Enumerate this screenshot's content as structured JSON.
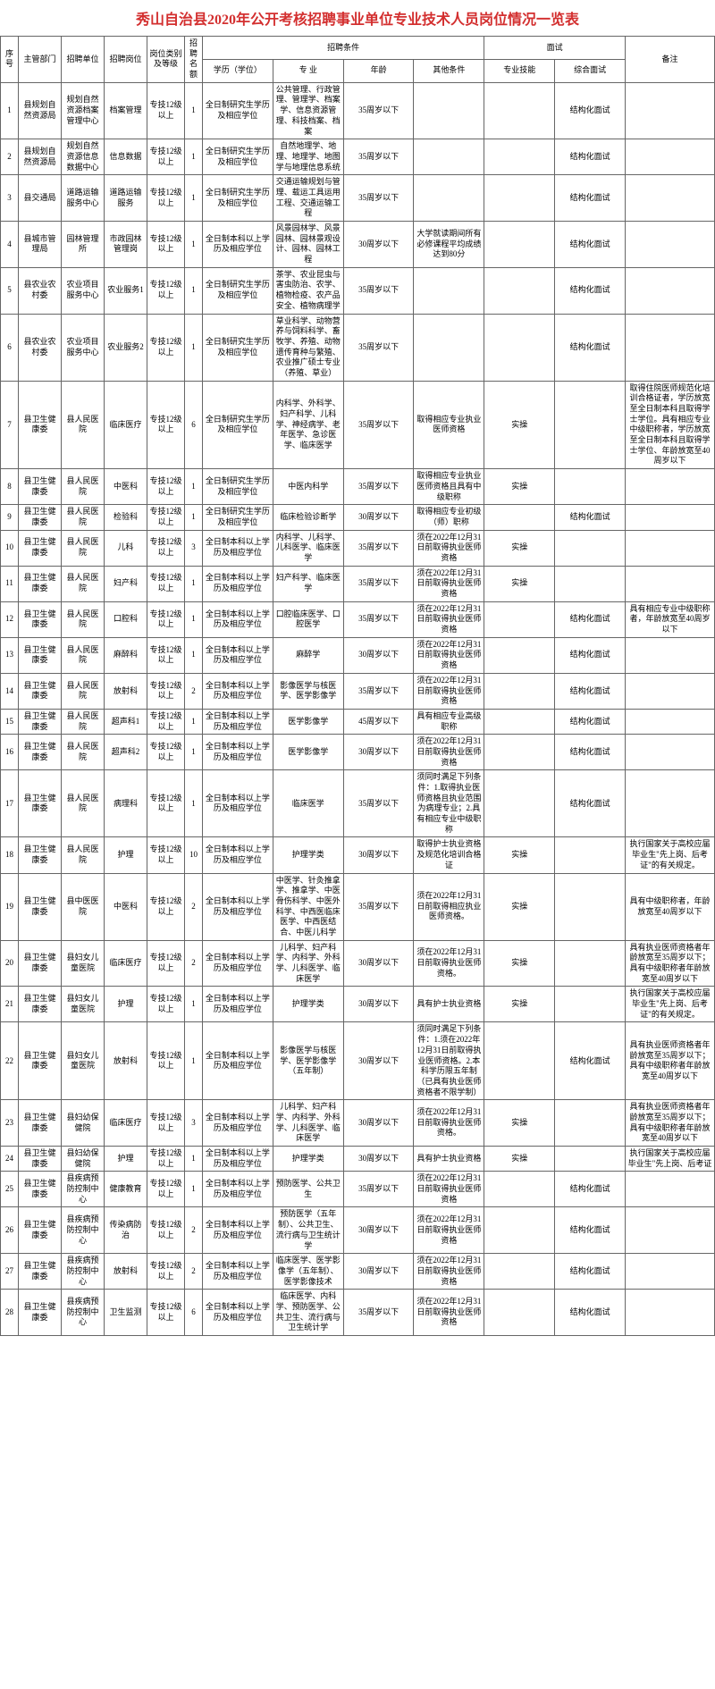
{
  "title": "秀山自治县2020年公开考核招聘事业单位专业技术人员岗位情况一览表",
  "headers": {
    "seq": "序号",
    "dept": "主管部门",
    "unit": "招聘单位",
    "post": "招聘岗位",
    "level": "岗位类别及等级",
    "num": "招聘名额",
    "conditions": "招聘条件",
    "edu": "学历（学位）",
    "major": "专  业",
    "age": "年龄",
    "other": "其他条件",
    "interview": "面试",
    "skill": "专业技能",
    "comp": "综合面试",
    "remark": "备注"
  },
  "rows": [
    {
      "seq": "1",
      "dept": "县规划自然资源局",
      "unit": "规划自然资源档案管理中心",
      "post": "档案管理",
      "level": "专技12级以上",
      "num": "1",
      "edu": "全日制研究生学历及相应学位",
      "major": "公共管理、行政管理、管理学、档案学、信息资源管理、科技档案、档案",
      "age": "35周岁以下",
      "other": "",
      "skill": "",
      "comp": "结构化面试",
      "remark": ""
    },
    {
      "seq": "2",
      "dept": "县规划自然资源局",
      "unit": "规划自然资源信息数据中心",
      "post": "信息数据",
      "level": "专技12级以上",
      "num": "1",
      "edu": "全日制研究生学历及相应学位",
      "major": "自然地理学、地理、地理学、地图学与地理信息系统",
      "age": "35周岁以下",
      "other": "",
      "skill": "",
      "comp": "结构化面试",
      "remark": ""
    },
    {
      "seq": "3",
      "dept": "县交通局",
      "unit": "道路运输服务中心",
      "post": "道路运输服务",
      "level": "专技12级以上",
      "num": "1",
      "edu": "全日制研究生学历及相应学位",
      "major": "交通运输规划与管理、载运工具运用工程、交通运输工程",
      "age": "35周岁以下",
      "other": "",
      "skill": "",
      "comp": "结构化面试",
      "remark": ""
    },
    {
      "seq": "4",
      "dept": "县城市管理局",
      "unit": "园林管理所",
      "post": "市政园林管理岗",
      "level": "专技12级以上",
      "num": "1",
      "edu": "全日制本科以上学历及相应学位",
      "major": "风景园林学、风景园林、园林景观设计、园林、园林工程",
      "age": "30周岁以下",
      "other": "大学就读期间所有必修课程平均成绩达到80分",
      "skill": "",
      "comp": "结构化面试",
      "remark": ""
    },
    {
      "seq": "5",
      "dept": "县农业农村委",
      "unit": "农业项目服务中心",
      "post": "农业服务1",
      "level": "专技12级以上",
      "num": "1",
      "edu": "全日制研究生学历及相应学位",
      "major": "茶学、农业昆虫与害虫防治、农学、植物检疫、农产品安全、植物病理学",
      "age": "35周岁以下",
      "other": "",
      "skill": "",
      "comp": "结构化面试",
      "remark": ""
    },
    {
      "seq": "6",
      "dept": "县农业农村委",
      "unit": "农业项目服务中心",
      "post": "农业服务2",
      "level": "专技12级以上",
      "num": "1",
      "edu": "全日制研究生学历及相应学位",
      "major": "草业科学、动物营养与饲料科学、畜牧学、养殖、动物遗传育种与繁殖、农业推广硕士专业（养殖、草业）",
      "age": "35周岁以下",
      "other": "",
      "skill": "",
      "comp": "结构化面试",
      "remark": ""
    },
    {
      "seq": "7",
      "dept": "县卫生健康委",
      "unit": "县人民医院",
      "post": "临床医疗",
      "level": "专技12级以上",
      "num": "6",
      "edu": "全日制研究生学历及相应学位",
      "major": "内科学、外科学、妇产科学、儿科学、神经病学、老年医学、急诊医学、临床医学",
      "age": "35周岁以下",
      "other": "取得相应专业执业医师资格",
      "skill": "实操",
      "comp": "",
      "remark": "取得住院医师规范化培训合格证者，学历放宽至全日制本科且取得学士学位。具有相应专业中级职称者，学历放宽至全日制本科且取得学士学位、年龄放宽至40周岁以下"
    },
    {
      "seq": "8",
      "dept": "县卫生健康委",
      "unit": "县人民医院",
      "post": "中医科",
      "level": "专技12级以上",
      "num": "1",
      "edu": "全日制研究生学历及相应学位",
      "major": "中医内科学",
      "age": "35周岁以下",
      "other": "取得相应专业执业医师资格且具有中级职称",
      "skill": "实操",
      "comp": "",
      "remark": ""
    },
    {
      "seq": "9",
      "dept": "县卫生健康委",
      "unit": "县人民医院",
      "post": "检验科",
      "level": "专技12级以上",
      "num": "1",
      "edu": "全日制研究生学历及相应学位",
      "major": "临床检验诊断学",
      "age": "30周岁以下",
      "other": "取得相应专业初级（师）职称",
      "skill": "",
      "comp": "结构化面试",
      "remark": ""
    },
    {
      "seq": "10",
      "dept": "县卫生健康委",
      "unit": "县人民医院",
      "post": "儿科",
      "level": "专技12级以上",
      "num": "3",
      "edu": "全日制本科以上学历及相应学位",
      "major": "内科学、儿科学、儿科医学、临床医学",
      "age": "35周岁以下",
      "other": "须在2022年12月31日前取得执业医师资格",
      "skill": "实操",
      "comp": "",
      "remark": ""
    },
    {
      "seq": "11",
      "dept": "县卫生健康委",
      "unit": "县人民医院",
      "post": "妇产科",
      "level": "专技12级以上",
      "num": "1",
      "edu": "全日制本科以上学历及相应学位",
      "major": "妇产科学、临床医学",
      "age": "35周岁以下",
      "other": "须在2022年12月31日前取得执业医师资格",
      "skill": "实操",
      "comp": "",
      "remark": ""
    },
    {
      "seq": "12",
      "dept": "县卫生健康委",
      "unit": "县人民医院",
      "post": "口腔科",
      "level": "专技12级以上",
      "num": "1",
      "edu": "全日制本科以上学历及相应学位",
      "major": "口腔临床医学、口腔医学",
      "age": "35周岁以下",
      "other": "须在2022年12月31日前取得执业医师资格",
      "skill": "",
      "comp": "结构化面试",
      "remark": "具有相应专业中级职称者，年龄放宽至40周岁以下"
    },
    {
      "seq": "13",
      "dept": "县卫生健康委",
      "unit": "县人民医院",
      "post": "麻醉科",
      "level": "专技12级以上",
      "num": "1",
      "edu": "全日制本科以上学历及相应学位",
      "major": "麻醉学",
      "age": "30周岁以下",
      "other": "须在2022年12月31日前取得执业医师资格",
      "skill": "",
      "comp": "结构化面试",
      "remark": ""
    },
    {
      "seq": "14",
      "dept": "县卫生健康委",
      "unit": "县人民医院",
      "post": "放射科",
      "level": "专技12级以上",
      "num": "2",
      "edu": "全日制本科以上学历及相应学位",
      "major": "影像医学与核医学、医学影像学",
      "age": "35周岁以下",
      "other": "须在2022年12月31日前取得执业医师资格",
      "skill": "",
      "comp": "结构化面试",
      "remark": ""
    },
    {
      "seq": "15",
      "dept": "县卫生健康委",
      "unit": "县人民医院",
      "post": "超声科1",
      "level": "专技12级以上",
      "num": "1",
      "edu": "全日制本科以上学历及相应学位",
      "major": "医学影像学",
      "age": "45周岁以下",
      "other": "具有相应专业高级职称",
      "skill": "",
      "comp": "结构化面试",
      "remark": ""
    },
    {
      "seq": "16",
      "dept": "县卫生健康委",
      "unit": "县人民医院",
      "post": "超声科2",
      "level": "专技12级以上",
      "num": "1",
      "edu": "全日制本科以上学历及相应学位",
      "major": "医学影像学",
      "age": "30周岁以下",
      "other": "须在2022年12月31日前取得执业医师资格",
      "skill": "",
      "comp": "结构化面试",
      "remark": ""
    },
    {
      "seq": "17",
      "dept": "县卫生健康委",
      "unit": "县人民医院",
      "post": "病理科",
      "level": "专技12级以上",
      "num": "1",
      "edu": "全日制本科以上学历及相应学位",
      "major": "临床医学",
      "age": "35周岁以下",
      "other": "须同时满足下列条件：1.取得执业医师资格且执业范围为病理专业；2.具有相应专业中级职称",
      "skill": "",
      "comp": "结构化面试",
      "remark": ""
    },
    {
      "seq": "18",
      "dept": "县卫生健康委",
      "unit": "县人民医院",
      "post": "护理",
      "level": "专技12级以上",
      "num": "10",
      "edu": "全日制本科以上学历及相应学位",
      "major": "护理学类",
      "age": "30周岁以下",
      "other": "取得护士执业资格及规范化培训合格证",
      "skill": "实操",
      "comp": "",
      "remark": "执行国家关于高校应届毕业生\"先上岗、后考证\"的有关规定。"
    },
    {
      "seq": "19",
      "dept": "县卫生健康委",
      "unit": "县中医医院",
      "post": "中医科",
      "level": "专技12级以上",
      "num": "2",
      "edu": "全日制本科以上学历及相应学位",
      "major": "中医学、针灸推拿学、推拿学、中医骨伤科学、中医外科学、中西医临床医学、中西医结合、中医儿科学",
      "age": "35周岁以下",
      "other": "须在2022年12月31日前取得相应执业医师资格。",
      "skill": "实操",
      "comp": "",
      "remark": "具有中级职称者，年龄放宽至40周岁以下"
    },
    {
      "seq": "20",
      "dept": "县卫生健康委",
      "unit": "县妇女儿童医院",
      "post": "临床医疗",
      "level": "专技12级以上",
      "num": "2",
      "edu": "全日制本科以上学历及相应学位",
      "major": "儿科学、妇产科学、内科学、外科学、儿科医学、临床医学",
      "age": "30周岁以下",
      "other": "须在2022年12月31日前取得执业医师资格。",
      "skill": "实操",
      "comp": "",
      "remark": "具有执业医师资格者年龄放宽至35周岁以下；具有中级职称者年龄放宽至40周岁以下"
    },
    {
      "seq": "21",
      "dept": "县卫生健康委",
      "unit": "县妇女儿童医院",
      "post": "护理",
      "level": "专技12级以上",
      "num": "1",
      "edu": "全日制本科以上学历及相应学位",
      "major": "护理学类",
      "age": "30周岁以下",
      "other": "具有护士执业资格",
      "skill": "实操",
      "comp": "",
      "remark": "执行国家关于高校应届毕业生\"先上岗、后考证\"的有关规定。"
    },
    {
      "seq": "22",
      "dept": "县卫生健康委",
      "unit": "县妇女儿童医院",
      "post": "放射科",
      "level": "专技12级以上",
      "num": "1",
      "edu": "全日制本科以上学历及相应学位",
      "major": "影像医学与核医学、医学影像学（五年制）",
      "age": "30周岁以下",
      "other": "须同时满足下列条件：1.须在2022年12月31日前取得执业医师资格。2.本科学历限五年制（已具有执业医师资格者不限学制）",
      "skill": "",
      "comp": "结构化面试",
      "remark": "具有执业医师资格者年龄放宽至35周岁以下；具有中级职称者年龄放宽至40周岁以下"
    },
    {
      "seq": "23",
      "dept": "县卫生健康委",
      "unit": "县妇幼保健院",
      "post": "临床医疗",
      "level": "专技12级以上",
      "num": "3",
      "edu": "全日制本科以上学历及相应学位",
      "major": "儿科学、妇产科学、内科学、外科学、儿科医学、临床医学",
      "age": "30周岁以下",
      "other": "须在2022年12月31日前取得执业医师资格。",
      "skill": "实操",
      "comp": "",
      "remark": "具有执业医师资格者年龄放宽至35周岁以下；具有中级职称者年龄放宽至40周岁以下"
    },
    {
      "seq": "24",
      "dept": "县卫生健康委",
      "unit": "县妇幼保健院",
      "post": "护理",
      "level": "专技12级以上",
      "num": "1",
      "edu": "全日制本科以上学历及相应学位",
      "major": "护理学类",
      "age": "30周岁以下",
      "other": "具有护士执业资格",
      "skill": "实操",
      "comp": "",
      "remark": "执行国家关于高校应届毕业生\"先上岗、后考证"
    },
    {
      "seq": "25",
      "dept": "县卫生健康委",
      "unit": "县疾病预防控制中心",
      "post": "健康教育",
      "level": "专技12级以上",
      "num": "1",
      "edu": "全日制本科以上学历及相应学位",
      "major": "预防医学、公共卫生",
      "age": "35周岁以下",
      "other": "须在2022年12月31日前取得执业医师资格",
      "skill": "",
      "comp": "结构化面试",
      "remark": ""
    },
    {
      "seq": "26",
      "dept": "县卫生健康委",
      "unit": "县疾病预防控制中心",
      "post": "传染病防治",
      "level": "专技12级以上",
      "num": "2",
      "edu": "全日制本科以上学历及相应学位",
      "major": "预防医学（五年制）、公共卫生、流行病与卫生统计学",
      "age": "30周岁以下",
      "other": "须在2022年12月31日前取得执业医师资格",
      "skill": "",
      "comp": "结构化面试",
      "remark": ""
    },
    {
      "seq": "27",
      "dept": "县卫生健康委",
      "unit": "县疾病预防控制中心",
      "post": "放射科",
      "level": "专技12级以上",
      "num": "2",
      "edu": "全日制本科以上学历及相应学位",
      "major": "临床医学、医学影像学（五年制）、医学影像技术",
      "age": "30周岁以下",
      "other": "须在2022年12月31日前取得执业医师资格",
      "skill": "",
      "comp": "结构化面试",
      "remark": ""
    },
    {
      "seq": "28",
      "dept": "县卫生健康委",
      "unit": "县疾病预防控制中心",
      "post": "卫生监测",
      "level": "专技12级以上",
      "num": "6",
      "edu": "全日制本科以上学历及相应学位",
      "major": "临床医学、内科学、预防医学、公共卫生、流行病与卫生统计学",
      "age": "35周岁以下",
      "other": "须在2022年12月31日前取得执业医师资格",
      "skill": "",
      "comp": "结构化面试",
      "remark": ""
    }
  ]
}
